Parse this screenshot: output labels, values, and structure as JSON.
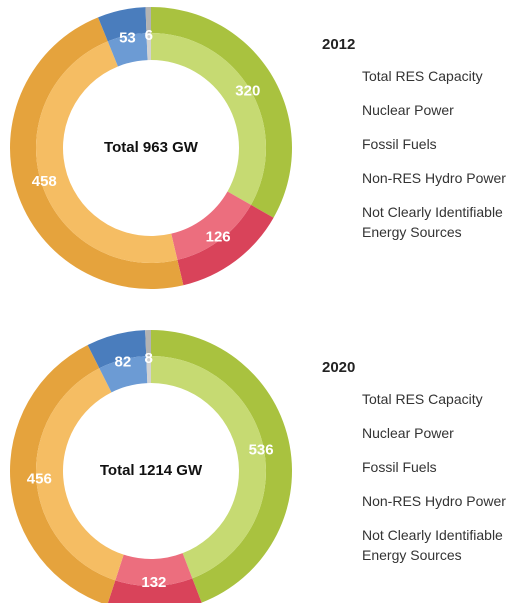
{
  "chart_data": [
    {
      "type": "donut",
      "title": "2012",
      "center_label": "Total 963 GW",
      "categories": [
        "Total RES Capacity",
        "Nuclear Power",
        "Fossil Fuels",
        "Non-RES Hydro Power",
        "Not Clearly Identifiable Energy Sources"
      ],
      "values": [
        320,
        126,
        458,
        53,
        6
      ],
      "colors": [
        "#a9c23f",
        "#d9435a",
        "#e5a33d",
        "#4a7dbd",
        "#b3b3b3"
      ],
      "inner_colors": [
        "#c6da72",
        "#ec6e7e",
        "#f5bd63",
        "#6c9bd4",
        "#d2d2d2"
      ]
    },
    {
      "type": "donut",
      "title": "2020",
      "center_label": "Total 1214 GW",
      "categories": [
        "Total RES Capacity",
        "Nuclear Power",
        "Fossil Fuels",
        "Non-RES Hydro Power",
        "Not Clearly Identifiable Energy Sources"
      ],
      "values": [
        536,
        132,
        456,
        82,
        8
      ],
      "colors": [
        "#a9c23f",
        "#d9435a",
        "#e5a33d",
        "#4a7dbd",
        "#b3b3b3"
      ],
      "inner_colors": [
        "#c6da72",
        "#ec6e7e",
        "#f5bd63",
        "#6c9bd4",
        "#d2d2d2"
      ]
    }
  ]
}
